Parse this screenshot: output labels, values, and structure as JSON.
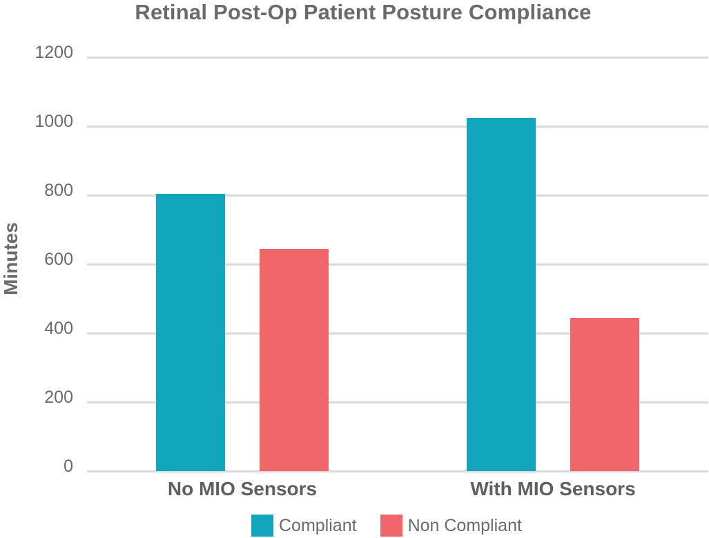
{
  "chart_data": {
    "type": "bar",
    "title": "Retinal Post-Op Patient Posture Compliance",
    "xlabel": "",
    "ylabel": "Minutes",
    "ylim": [
      0,
      1200
    ],
    "yticks": [
      0,
      200,
      400,
      600,
      800,
      1000,
      1200
    ],
    "categories": [
      "No MIO Sensors",
      "With MIO Sensors"
    ],
    "series": [
      {
        "name": "Compliant",
        "color": "#12a6bd",
        "values": [
          805,
          1025
        ]
      },
      {
        "name": "Non Compliant",
        "color": "#f0666a",
        "values": [
          645,
          445
        ]
      }
    ],
    "grid": true,
    "legend_position": "bottom"
  }
}
